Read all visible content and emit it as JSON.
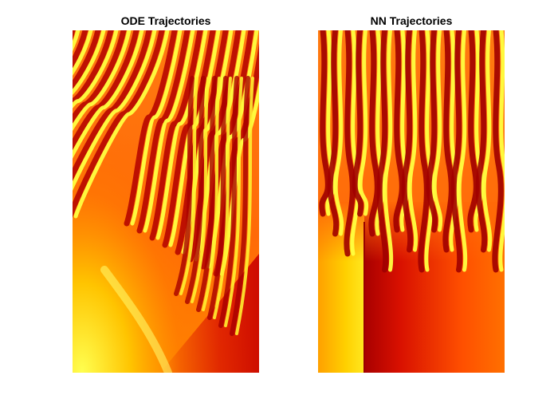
{
  "chart_data": [
    {
      "type": "heatmap",
      "title": "ODE Trajectories",
      "colormap": [
        "#b30000",
        "#e81b00",
        "#ff5a00",
        "#ff9a00",
        "#ffd400",
        "#ffff55"
      ],
      "axes_visible": false,
      "background_color": "#ff6a0a",
      "stripe_count": 16,
      "stripe_region": "upper half, extending down the right side",
      "lower_region": "smooth orange gradient with a yellow fan at the lower left"
    },
    {
      "type": "heatmap",
      "title": "NN Trajectories",
      "colormap": [
        "#b30000",
        "#e81b00",
        "#ff5a00",
        "#ff9a00",
        "#ffd400",
        "#ffff55"
      ],
      "axes_visible": false,
      "background_color": "#ff6a0a",
      "stripe_count": 15,
      "stripe_region": "upper half, near-vertical wavy stripes",
      "lower_region": "orange gradient with a sharp vertical dark-red boundary"
    }
  ]
}
